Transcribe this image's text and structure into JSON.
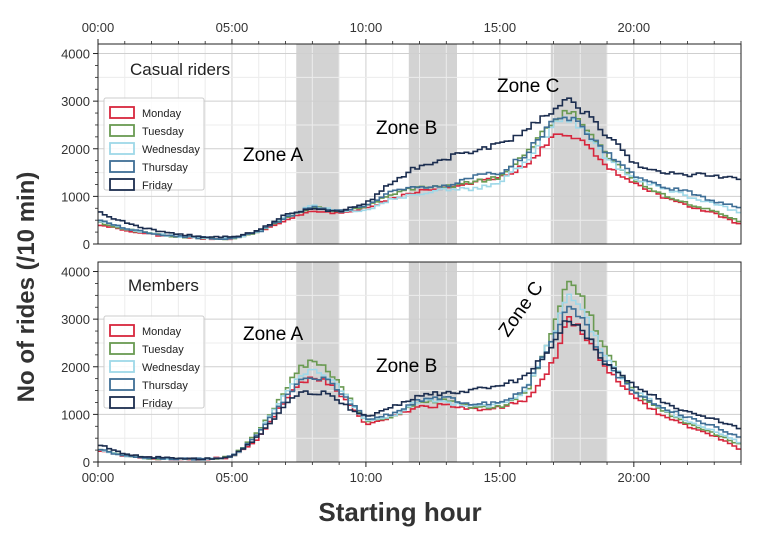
{
  "chart_data": {
    "type": "line",
    "ylabel": "No of rides (/10 min)",
    "xlabel": "Starting hour",
    "xticks": [
      "00:00",
      "05:00",
      "10:00",
      "15:00",
      "20:00"
    ],
    "xtick_hours": [
      0,
      5,
      10,
      15,
      20
    ],
    "xlim_hours": [
      0,
      24
    ],
    "ylim": [
      0,
      4200
    ],
    "yticks": [
      0,
      1000,
      2000,
      3000,
      4000
    ],
    "grid": true,
    "step_minutes": 10,
    "shaded_zones_hours": [
      [
        7.4,
        9.0
      ],
      [
        11.6,
        13.4
      ],
      [
        16.9,
        19.0
      ]
    ],
    "colors": {
      "Monday": "#d7263d",
      "Tuesday": "#6a9a52",
      "Wednesday": "#9fd8e8",
      "Thursday": "#3f6f96",
      "Friday": "#1b2d4f",
      "zone_fill": "#d3d3d3"
    },
    "panels": [
      {
        "title": "Casual riders",
        "zone_labels": [
          "Zone A",
          "Zone B",
          "Zone C"
        ],
        "legend": [
          "Monday",
          "Tuesday",
          "Wednesday",
          "Thursday",
          "Friday"
        ],
        "series": [
          {
            "name": "Monday",
            "x": [
              0,
              1,
              2,
              3,
              4,
              5,
              6,
              7,
              8,
              9,
              10,
              11,
              12,
              13,
              14,
              15,
              16,
              17,
              17.5,
              18,
              19,
              20,
              21,
              22,
              23,
              24
            ],
            "y": [
              420,
              300,
              200,
              150,
              120,
              110,
              250,
              500,
              700,
              650,
              750,
              950,
              1100,
              1200,
              1300,
              1400,
              1650,
              2250,
              2350,
              2200,
              1600,
              1300,
              1000,
              800,
              650,
              400
            ]
          },
          {
            "name": "Tuesday",
            "x": [
              0,
              1,
              2,
              3,
              4,
              5,
              6,
              7,
              8,
              9,
              10,
              11,
              12,
              13,
              14,
              15,
              16,
              17,
              17.5,
              18,
              19,
              20,
              21,
              22,
              23,
              24
            ],
            "y": [
              450,
              320,
              210,
              160,
              120,
              110,
              250,
              550,
              780,
              680,
              780,
              1050,
              1200,
              1200,
              1300,
              1400,
              1900,
              2600,
              2800,
              2600,
              1850,
              1350,
              1050,
              850,
              700,
              450
            ]
          },
          {
            "name": "Wednesday",
            "x": [
              0,
              1,
              2,
              3,
              4,
              5,
              6,
              7,
              8,
              9,
              10,
              11,
              12,
              13,
              14,
              15,
              16,
              17,
              17.5,
              18,
              19,
              20,
              21,
              22,
              23,
              24
            ],
            "y": [
              480,
              330,
              220,
              160,
              130,
              110,
              260,
              570,
              800,
              690,
              700,
              950,
              1050,
              1150,
              1150,
              1300,
              1750,
              2500,
              2650,
              2450,
              1800,
              1350,
              1200,
              1000,
              850,
              650
            ]
          },
          {
            "name": "Thursday",
            "x": [
              0,
              1,
              2,
              3,
              4,
              5,
              6,
              7,
              8,
              9,
              10,
              11,
              12,
              13,
              14,
              15,
              16,
              17,
              17.5,
              18,
              19,
              20,
              21,
              22,
              23,
              24
            ],
            "y": [
              500,
              340,
              220,
              160,
              130,
              110,
              260,
              550,
              780,
              690,
              800,
              1100,
              1200,
              1200,
              1400,
              1500,
              1900,
              2600,
              2700,
              2500,
              1900,
              1450,
              1200,
              1100,
              900,
              750
            ]
          },
          {
            "name": "Friday",
            "x": [
              0,
              1,
              2,
              3,
              4,
              5,
              6,
              7,
              8,
              9,
              10,
              11,
              12,
              13,
              14,
              15,
              16,
              17,
              17.5,
              18,
              19,
              20,
              21,
              22,
              23,
              24
            ],
            "y": [
              680,
              450,
              300,
              200,
              150,
              140,
              280,
              620,
              750,
              680,
              850,
              1300,
              1650,
              1800,
              1950,
              2100,
              2400,
              2800,
              3000,
              2850,
              2300,
              1700,
              1500,
              1450,
              1450,
              1350
            ]
          }
        ]
      },
      {
        "title": "Members",
        "zone_labels": [
          "Zone A",
          "Zone B",
          "Zone C"
        ],
        "legend": [
          "Monday",
          "Tuesday",
          "Wednesday",
          "Thursday",
          "Friday"
        ],
        "series": [
          {
            "name": "Monday",
            "x": [
              0,
              1,
              2,
              3,
              4,
              5,
              5.5,
              6,
              7,
              7.5,
              8,
              8.5,
              9,
              10,
              11,
              12,
              13,
              14,
              15,
              16,
              17,
              17.5,
              18,
              19,
              20,
              21,
              22,
              23,
              24
            ],
            "y": [
              250,
              120,
              80,
              60,
              60,
              100,
              300,
              500,
              1300,
              1650,
              1750,
              1700,
              1450,
              800,
              950,
              1150,
              1200,
              1100,
              1150,
              1300,
              2100,
              3000,
              2800,
              1950,
              1350,
              1000,
              750,
              550,
              250
            ]
          },
          {
            "name": "Tuesday",
            "x": [
              0,
              1,
              2,
              3,
              4,
              5,
              5.5,
              6,
              7,
              7.5,
              8,
              8.5,
              9,
              10,
              11,
              12,
              13,
              14,
              15,
              16,
              17,
              17.5,
              18,
              19,
              20,
              21,
              22,
              23,
              24
            ],
            "y": [
              260,
              120,
              80,
              60,
              60,
              110,
              350,
              650,
              1500,
              2000,
              2100,
              2000,
              1650,
              850,
              950,
              1250,
              1300,
              1150,
              1150,
              1450,
              2800,
              3900,
              3550,
              2250,
              1500,
              1100,
              800,
              600,
              350
            ]
          },
          {
            "name": "Wednesday",
            "x": [
              0,
              1,
              2,
              3,
              4,
              5,
              5.5,
              6,
              7,
              7.5,
              8,
              8.5,
              9,
              10,
              11,
              12,
              13,
              14,
              15,
              16,
              17,
              17.5,
              18,
              19,
              20,
              21,
              22,
              23,
              24
            ],
            "y": [
              270,
              120,
              80,
              60,
              60,
              110,
              330,
              620,
              1450,
              1850,
              1900,
              1850,
              1550,
              850,
              950,
              1300,
              1250,
              1150,
              1200,
              1500,
              2700,
              3500,
              3300,
              2150,
              1500,
              1150,
              850,
              650,
              400
            ]
          },
          {
            "name": "Thursday",
            "x": [
              0,
              1,
              2,
              3,
              4,
              5,
              5.5,
              6,
              7,
              7.5,
              8,
              8.5,
              9,
              10,
              11,
              12,
              13,
              14,
              15,
              16,
              17,
              17.5,
              18,
              19,
              20,
              21,
              22,
              23,
              24
            ],
            "y": [
              280,
              120,
              80,
              60,
              60,
              110,
              320,
              600,
              1350,
              1700,
              1800,
              1750,
              1500,
              900,
              1000,
              1300,
              1350,
              1200,
              1250,
              1550,
              2600,
              3200,
              3050,
              2050,
              1500,
              1150,
              950,
              750,
              500
            ]
          },
          {
            "name": "Friday",
            "x": [
              0,
              1,
              2,
              3,
              4,
              5,
              5.5,
              6,
              7,
              7.5,
              8,
              8.5,
              9,
              10,
              11,
              12,
              13,
              14,
              15,
              16,
              17,
              17.5,
              18,
              19,
              20,
              21,
              22,
              23,
              24
            ],
            "y": [
              380,
              150,
              100,
              70,
              70,
              110,
              300,
              550,
              1200,
              1450,
              1450,
              1450,
              1250,
              950,
              1150,
              1400,
              1450,
              1500,
              1600,
              1800,
              2450,
              3000,
              2850,
              2050,
              1600,
              1300,
              1050,
              900,
              700
            ]
          }
        ]
      }
    ]
  }
}
